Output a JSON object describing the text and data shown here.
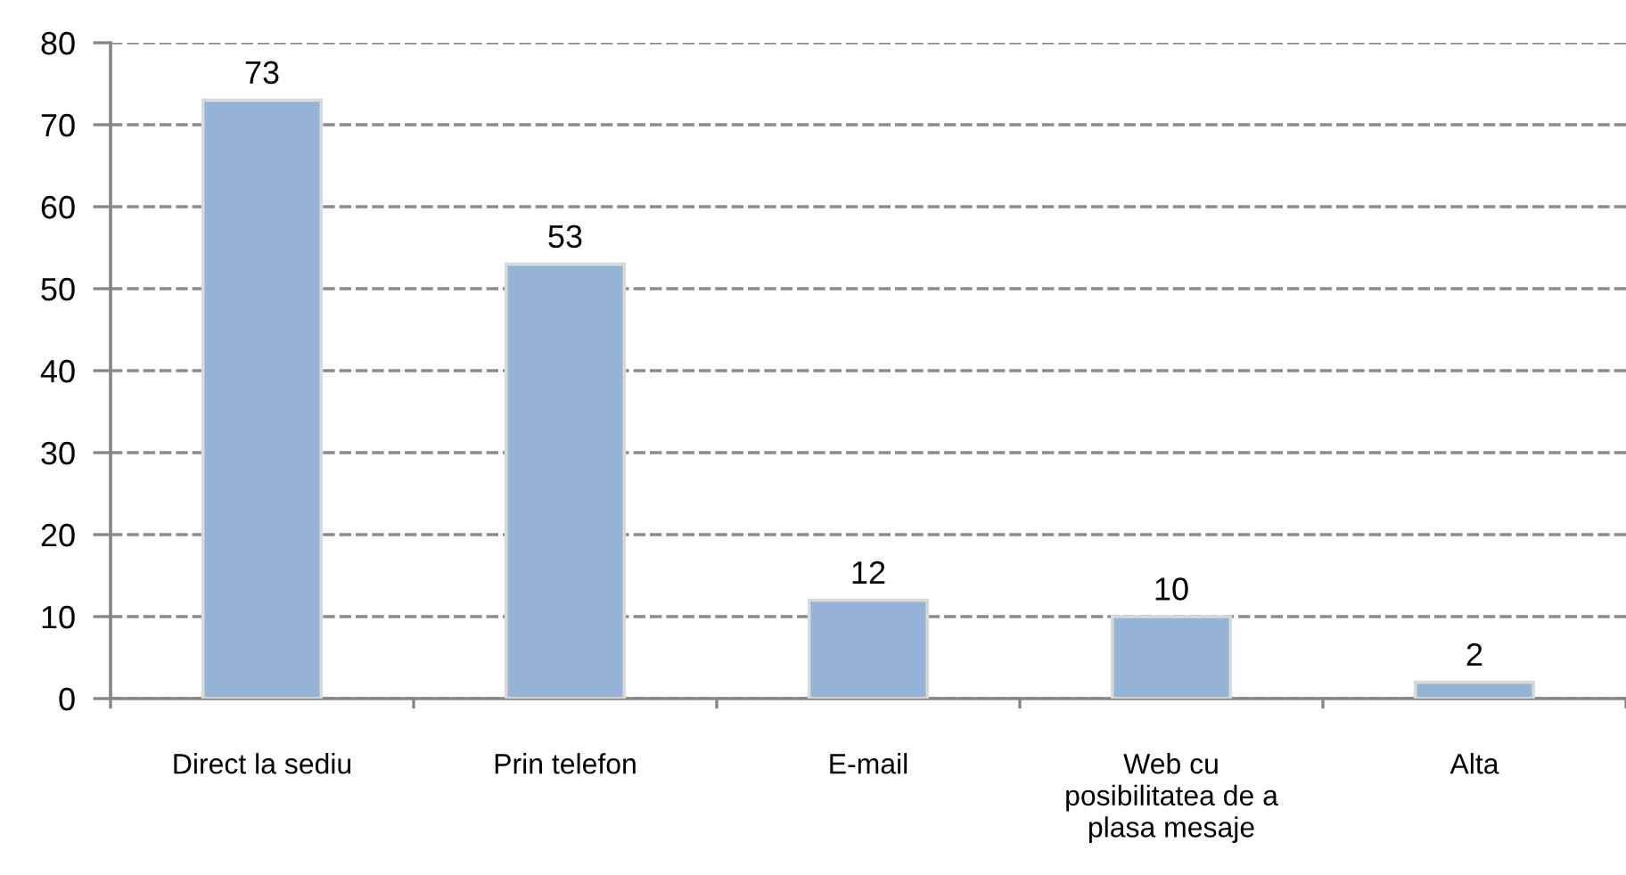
{
  "chart_data": {
    "type": "bar",
    "categories": [
      "Direct la sediu",
      "Prin telefon",
      "E-mail",
      "Web cu\nposibilitatea de a\nplasa mesaje",
      "Alta"
    ],
    "values": [
      73,
      53,
      12,
      10,
      2
    ],
    "color": "#95b3d7",
    "ylim": [
      0,
      80
    ],
    "yticks": [
      0,
      10,
      20,
      30,
      40,
      50,
      60,
      70,
      80
    ],
    "grid": "y",
    "data_labels": true
  }
}
